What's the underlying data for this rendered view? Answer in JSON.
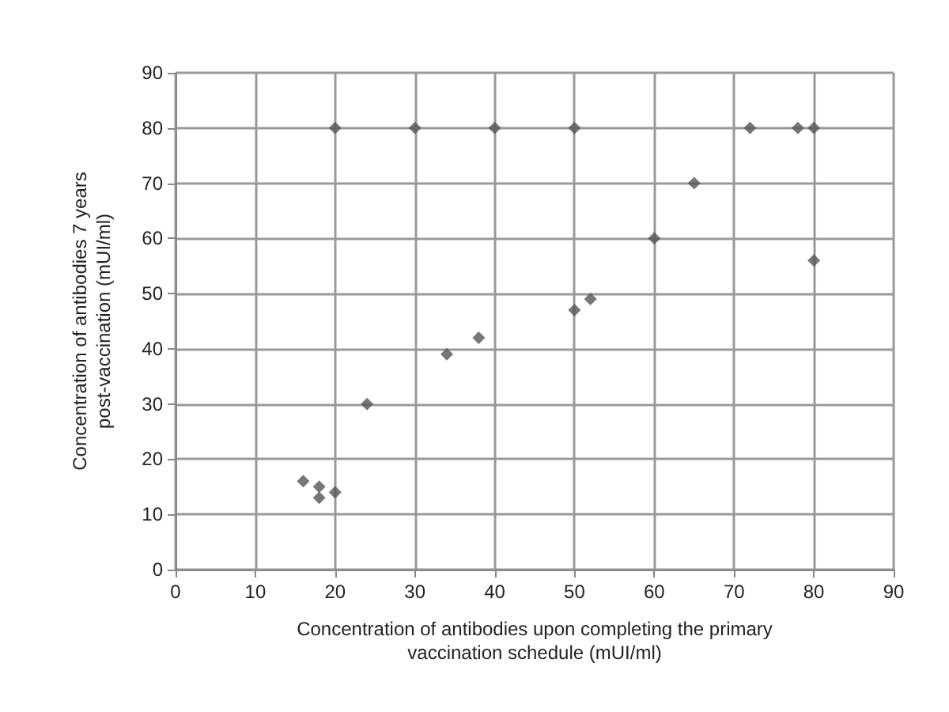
{
  "chart_data": {
    "type": "scatter",
    "xlabel": "Concentration of antibodies upon completing the primary\nvaccination schedule (mUI/ml)",
    "ylabel": "Concentration of antibodies 7 years\npost-vaccination (mUI/ml)",
    "x": [
      16,
      18,
      18,
      20,
      24,
      34,
      38,
      20,
      30,
      40,
      50,
      50,
      52,
      60,
      65,
      72,
      78,
      80,
      80
    ],
    "values": [
      16,
      15,
      13,
      14,
      30,
      39,
      42,
      80,
      80,
      80,
      80,
      47,
      49,
      60,
      70,
      80,
      80,
      80,
      56
    ],
    "color": "#555555",
    "marker": "diamond",
    "grid": true,
    "xlim": [
      0,
      90
    ],
    "xticks": [
      0,
      10,
      20,
      30,
      40,
      50,
      60,
      70,
      80,
      90
    ],
    "ylim": [
      0,
      90
    ],
    "yticks": [
      0,
      10,
      20,
      30,
      40,
      50,
      60,
      70,
      80,
      90
    ]
  }
}
